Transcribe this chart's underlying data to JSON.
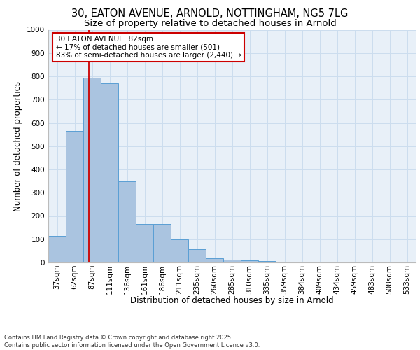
{
  "title_line1": "30, EATON AVENUE, ARNOLD, NOTTINGHAM, NG5 7LG",
  "title_line2": "Size of property relative to detached houses in Arnold",
  "xlabel": "Distribution of detached houses by size in Arnold",
  "ylabel": "Number of detached properties",
  "categories": [
    "37sqm",
    "62sqm",
    "87sqm",
    "111sqm",
    "136sqm",
    "161sqm",
    "186sqm",
    "211sqm",
    "235sqm",
    "260sqm",
    "285sqm",
    "310sqm",
    "335sqm",
    "359sqm",
    "384sqm",
    "409sqm",
    "434sqm",
    "459sqm",
    "483sqm",
    "508sqm",
    "533sqm"
  ],
  "values": [
    113,
    565,
    795,
    770,
    350,
    165,
    165,
    100,
    57,
    18,
    13,
    10,
    5,
    0,
    0,
    3,
    0,
    0,
    0,
    0,
    3
  ],
  "bar_color": "#aac4e0",
  "bar_edge_color": "#5a9fd4",
  "highlight_label": "30 EATON AVENUE: 82sqm\n← 17% of detached houses are smaller (501)\n83% of semi-detached houses are larger (2,440) →",
  "annotation_box_color": "#cc0000",
  "vline_color": "#cc0000",
  "ylim": [
    0,
    1000
  ],
  "yticks": [
    0,
    100,
    200,
    300,
    400,
    500,
    600,
    700,
    800,
    900,
    1000
  ],
  "grid_color": "#ccddee",
  "background_color": "#e8f0f8",
  "footnote": "Contains HM Land Registry data © Crown copyright and database right 2025.\nContains public sector information licensed under the Open Government Licence v3.0.",
  "title_fontsize": 10.5,
  "subtitle_fontsize": 9.5,
  "axis_fontsize": 8.5,
  "tick_fontsize": 7.5,
  "annot_fontsize": 7.5,
  "footnote_fontsize": 6.0
}
